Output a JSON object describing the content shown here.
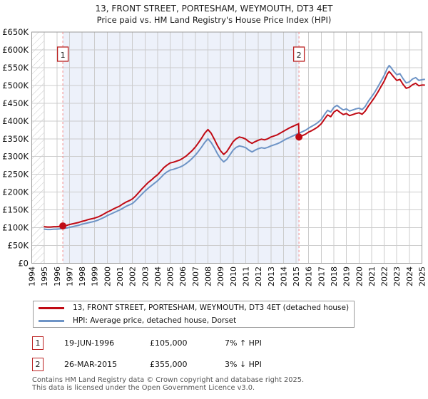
{
  "chart_data": {
    "type": "line",
    "title": "13, FRONT STREET, PORTESHAM, WEYMOUTH, DT3 4ET",
    "subtitle": "Price paid vs. HM Land Registry's House Price Index (HPI)",
    "xlim": [
      1994,
      2025
    ],
    "ylim": [
      0,
      650000
    ],
    "grid": true,
    "x_ticks": [
      1994,
      1995,
      1996,
      1997,
      1998,
      1999,
      2000,
      2001,
      2002,
      2003,
      2004,
      2005,
      2006,
      2007,
      2008,
      2009,
      2010,
      2011,
      2012,
      2013,
      2014,
      2015,
      2016,
      2017,
      2018,
      2019,
      2020,
      2021,
      2022,
      2023,
      2024,
      2025
    ],
    "y_ticks": [
      {
        "value": 0,
        "label": "£0"
      },
      {
        "value": 50000,
        "label": "£50K"
      },
      {
        "value": 100000,
        "label": "£100K"
      },
      {
        "value": 150000,
        "label": "£150K"
      },
      {
        "value": 200000,
        "label": "£200K"
      },
      {
        "value": 250000,
        "label": "£250K"
      },
      {
        "value": 300000,
        "label": "£300K"
      },
      {
        "value": 350000,
        "label": "£350K"
      },
      {
        "value": 400000,
        "label": "£400K"
      },
      {
        "value": 450000,
        "label": "£450K"
      },
      {
        "value": 500000,
        "label": "£500K"
      },
      {
        "value": 550000,
        "label": "£550K"
      },
      {
        "value": 600000,
        "label": "£600K"
      },
      {
        "value": 650000,
        "label": "£650K"
      }
    ],
    "hatch_span": [
      1994,
      1995
    ],
    "shaded_span": [
      1996.47,
      2015.23
    ],
    "sale_vlines": [
      1996.47,
      2015.23
    ],
    "sales": [
      {
        "num": "1",
        "year": 1996.47,
        "price": 105000
      },
      {
        "num": "2",
        "year": 2015.23,
        "price": 355000
      }
    ],
    "colors": {
      "price_line": "#c00a14",
      "hpi_line": "#6e94c6",
      "sale_dot": "#c00a14",
      "dashed_vline": "#f28b8b",
      "shade_fill": "#edf1fa",
      "grid": "#cccccc",
      "plot_border": "#9a9a9a",
      "hatch_line": "#c8c8c8",
      "marker_box_border": "#bb2222",
      "axis_text": "#111111"
    },
    "series": [
      {
        "name": "price-paid",
        "label": "13, FRONT STREET, PORTESHAM, WEYMOUTH, DT3 4ET (detached house)",
        "color": "#c00a14",
        "points": [
          [
            1995,
            103000
          ],
          [
            1995.25,
            102000
          ],
          [
            1995.5,
            102000
          ],
          [
            1995.75,
            103000
          ],
          [
            1996,
            103000
          ],
          [
            1996.25,
            104000
          ],
          [
            1996.5,
            105000
          ],
          [
            1996.75,
            106000
          ],
          [
            1997,
            109000
          ],
          [
            1997.25,
            111000
          ],
          [
            1997.5,
            113000
          ],
          [
            1997.75,
            115000
          ],
          [
            1998,
            118000
          ],
          [
            1998.25,
            120000
          ],
          [
            1998.5,
            123000
          ],
          [
            1998.75,
            125000
          ],
          [
            1999,
            127000
          ],
          [
            1999.25,
            130000
          ],
          [
            1999.5,
            134000
          ],
          [
            1999.75,
            139000
          ],
          [
            2000,
            144000
          ],
          [
            2000.25,
            148000
          ],
          [
            2000.5,
            153000
          ],
          [
            2000.75,
            157000
          ],
          [
            2001,
            161000
          ],
          [
            2001.25,
            167000
          ],
          [
            2001.5,
            172000
          ],
          [
            2001.75,
            176000
          ],
          [
            2002,
            181000
          ],
          [
            2002.25,
            189000
          ],
          [
            2002.5,
            199000
          ],
          [
            2002.75,
            209000
          ],
          [
            2003,
            218000
          ],
          [
            2003.25,
            227000
          ],
          [
            2003.5,
            234000
          ],
          [
            2003.75,
            242000
          ],
          [
            2004,
            249000
          ],
          [
            2004.25,
            259000
          ],
          [
            2004.5,
            269000
          ],
          [
            2004.75,
            276000
          ],
          [
            2005,
            282000
          ],
          [
            2005.25,
            284000
          ],
          [
            2005.5,
            287000
          ],
          [
            2005.75,
            290000
          ],
          [
            2006,
            295000
          ],
          [
            2006.25,
            301000
          ],
          [
            2006.5,
            309000
          ],
          [
            2006.75,
            317000
          ],
          [
            2007,
            327000
          ],
          [
            2007.25,
            339000
          ],
          [
            2007.5,
            352000
          ],
          [
            2007.75,
            366000
          ],
          [
            2008,
            376000
          ],
          [
            2008.25,
            366000
          ],
          [
            2008.5,
            349000
          ],
          [
            2008.75,
            331000
          ],
          [
            2009,
            316000
          ],
          [
            2009.25,
            306000
          ],
          [
            2009.5,
            314000
          ],
          [
            2009.75,
            328000
          ],
          [
            2010,
            342000
          ],
          [
            2010.25,
            350000
          ],
          [
            2010.5,
            355000
          ],
          [
            2010.75,
            353000
          ],
          [
            2011,
            349000
          ],
          [
            2011.25,
            342000
          ],
          [
            2011.5,
            337000
          ],
          [
            2011.75,
            342000
          ],
          [
            2012,
            346000
          ],
          [
            2012.25,
            349000
          ],
          [
            2012.5,
            347000
          ],
          [
            2012.75,
            350000
          ],
          [
            2013,
            355000
          ],
          [
            2013.25,
            358000
          ],
          [
            2013.5,
            361000
          ],
          [
            2013.75,
            366000
          ],
          [
            2014,
            371000
          ],
          [
            2014.25,
            376000
          ],
          [
            2014.5,
            381000
          ],
          [
            2014.75,
            385000
          ],
          [
            2015,
            389000
          ],
          [
            2015.2,
            392000
          ],
          [
            2015.23,
            355000
          ],
          [
            2015.5,
            359000
          ],
          [
            2015.75,
            363000
          ],
          [
            2016,
            369000
          ],
          [
            2016.25,
            373000
          ],
          [
            2016.5,
            378000
          ],
          [
            2016.75,
            384000
          ],
          [
            2017,
            392000
          ],
          [
            2017.25,
            405000
          ],
          [
            2017.5,
            417000
          ],
          [
            2017.75,
            412000
          ],
          [
            2018,
            425000
          ],
          [
            2018.25,
            431000
          ],
          [
            2018.5,
            424000
          ],
          [
            2018.75,
            418000
          ],
          [
            2019,
            421000
          ],
          [
            2019.25,
            415000
          ],
          [
            2019.5,
            418000
          ],
          [
            2019.75,
            421000
          ],
          [
            2020,
            423000
          ],
          [
            2020.25,
            419000
          ],
          [
            2020.5,
            428000
          ],
          [
            2020.75,
            442000
          ],
          [
            2021,
            454000
          ],
          [
            2021.25,
            467000
          ],
          [
            2021.5,
            481000
          ],
          [
            2021.75,
            497000
          ],
          [
            2022,
            512000
          ],
          [
            2022.25,
            532000
          ],
          [
            2022.4,
            539000
          ],
          [
            2022.5,
            535000
          ],
          [
            2022.75,
            524000
          ],
          [
            2023,
            514000
          ],
          [
            2023.25,
            517000
          ],
          [
            2023.5,
            503000
          ],
          [
            2023.75,
            492000
          ],
          [
            2024,
            495000
          ],
          [
            2024.25,
            502000
          ],
          [
            2024.5,
            506000
          ],
          [
            2024.75,
            499000
          ],
          [
            2025,
            501000
          ],
          [
            2025.2,
            501000
          ]
        ]
      },
      {
        "name": "hpi",
        "label": "HPI: Average price, detached house, Dorset",
        "color": "#6e94c6",
        "points": [
          [
            1995,
            96000
          ],
          [
            1995.25,
            95000
          ],
          [
            1995.5,
            95000
          ],
          [
            1995.75,
            96000
          ],
          [
            1996,
            96000
          ],
          [
            1996.25,
            97000
          ],
          [
            1996.5,
            98000
          ],
          [
            1996.75,
            99000
          ],
          [
            1997,
            101000
          ],
          [
            1997.25,
            103000
          ],
          [
            1997.5,
            105000
          ],
          [
            1997.75,
            107000
          ],
          [
            1998,
            110000
          ],
          [
            1998.25,
            112000
          ],
          [
            1998.5,
            114000
          ],
          [
            1998.75,
            116000
          ],
          [
            1999,
            118000
          ],
          [
            1999.25,
            121000
          ],
          [
            1999.5,
            125000
          ],
          [
            1999.75,
            129000
          ],
          [
            2000,
            134000
          ],
          [
            2000.25,
            138000
          ],
          [
            2000.5,
            142000
          ],
          [
            2000.75,
            146000
          ],
          [
            2001,
            150000
          ],
          [
            2001.25,
            155000
          ],
          [
            2001.5,
            160000
          ],
          [
            2001.75,
            164000
          ],
          [
            2002,
            168000
          ],
          [
            2002.25,
            176000
          ],
          [
            2002.5,
            185000
          ],
          [
            2002.75,
            194000
          ],
          [
            2003,
            203000
          ],
          [
            2003.25,
            211000
          ],
          [
            2003.5,
            218000
          ],
          [
            2003.75,
            225000
          ],
          [
            2004,
            232000
          ],
          [
            2004.25,
            241000
          ],
          [
            2004.5,
            250000
          ],
          [
            2004.75,
            257000
          ],
          [
            2005,
            262000
          ],
          [
            2005.25,
            264000
          ],
          [
            2005.5,
            267000
          ],
          [
            2005.75,
            270000
          ],
          [
            2006,
            274000
          ],
          [
            2006.25,
            280000
          ],
          [
            2006.5,
            287000
          ],
          [
            2006.75,
            295000
          ],
          [
            2007,
            304000
          ],
          [
            2007.25,
            315000
          ],
          [
            2007.5,
            327000
          ],
          [
            2007.75,
            340000
          ],
          [
            2008,
            350000
          ],
          [
            2008.25,
            340000
          ],
          [
            2008.5,
            325000
          ],
          [
            2008.75,
            308000
          ],
          [
            2009,
            294000
          ],
          [
            2009.25,
            285000
          ],
          [
            2009.5,
            292000
          ],
          [
            2009.75,
            305000
          ],
          [
            2010,
            318000
          ],
          [
            2010.25,
            326000
          ],
          [
            2010.5,
            330000
          ],
          [
            2010.75,
            328000
          ],
          [
            2011,
            325000
          ],
          [
            2011.25,
            318000
          ],
          [
            2011.5,
            313000
          ],
          [
            2011.75,
            318000
          ],
          [
            2012,
            322000
          ],
          [
            2012.25,
            325000
          ],
          [
            2012.5,
            323000
          ],
          [
            2012.75,
            326000
          ],
          [
            2013,
            330000
          ],
          [
            2013.25,
            333000
          ],
          [
            2013.5,
            336000
          ],
          [
            2013.75,
            340000
          ],
          [
            2014,
            345000
          ],
          [
            2014.25,
            350000
          ],
          [
            2014.5,
            354000
          ],
          [
            2014.75,
            358000
          ],
          [
            2015,
            362000
          ],
          [
            2015.25,
            366000
          ],
          [
            2015.5,
            370000
          ],
          [
            2015.75,
            374000
          ],
          [
            2016,
            380000
          ],
          [
            2016.25,
            385000
          ],
          [
            2016.5,
            390000
          ],
          [
            2016.75,
            396000
          ],
          [
            2017,
            404000
          ],
          [
            2017.25,
            418000
          ],
          [
            2017.5,
            430000
          ],
          [
            2017.75,
            425000
          ],
          [
            2018,
            438000
          ],
          [
            2018.25,
            444000
          ],
          [
            2018.5,
            437000
          ],
          [
            2018.75,
            431000
          ],
          [
            2019,
            434000
          ],
          [
            2019.25,
            428000
          ],
          [
            2019.5,
            431000
          ],
          [
            2019.75,
            434000
          ],
          [
            2020,
            436000
          ],
          [
            2020.25,
            432000
          ],
          [
            2020.5,
            441000
          ],
          [
            2020.75,
            456000
          ],
          [
            2021,
            468000
          ],
          [
            2021.25,
            481000
          ],
          [
            2021.5,
            496000
          ],
          [
            2021.75,
            512000
          ],
          [
            2022,
            528000
          ],
          [
            2022.25,
            548000
          ],
          [
            2022.4,
            556000
          ],
          [
            2022.5,
            552000
          ],
          [
            2022.75,
            540000
          ],
          [
            2023,
            530000
          ],
          [
            2023.25,
            533000
          ],
          [
            2023.5,
            519000
          ],
          [
            2023.75,
            507000
          ],
          [
            2024,
            510000
          ],
          [
            2024.25,
            518000
          ],
          [
            2024.5,
            522000
          ],
          [
            2024.75,
            514000
          ],
          [
            2025,
            516000
          ],
          [
            2025.2,
            517000
          ]
        ]
      }
    ]
  },
  "legend": {
    "entries": [
      {
        "label": "13, FRONT STREET, PORTESHAM, WEYMOUTH, DT3 4ET (detached house)",
        "color": "#c00a14"
      },
      {
        "label": "HPI: Average price, detached house, Dorset",
        "color": "#6e94c6"
      }
    ]
  },
  "transactions": [
    {
      "num": "1",
      "date": "19-JUN-1996",
      "price": "£105,000",
      "hpi_delta": "7% ↑ HPI"
    },
    {
      "num": "2",
      "date": "26-MAR-2015",
      "price": "£355,000",
      "hpi_delta": "3% ↓ HPI"
    }
  ],
  "footer": {
    "line1": "Contains HM Land Registry data © Crown copyright and database right 2025.",
    "line2": "This data is licensed under the Open Government Licence v3.0."
  }
}
